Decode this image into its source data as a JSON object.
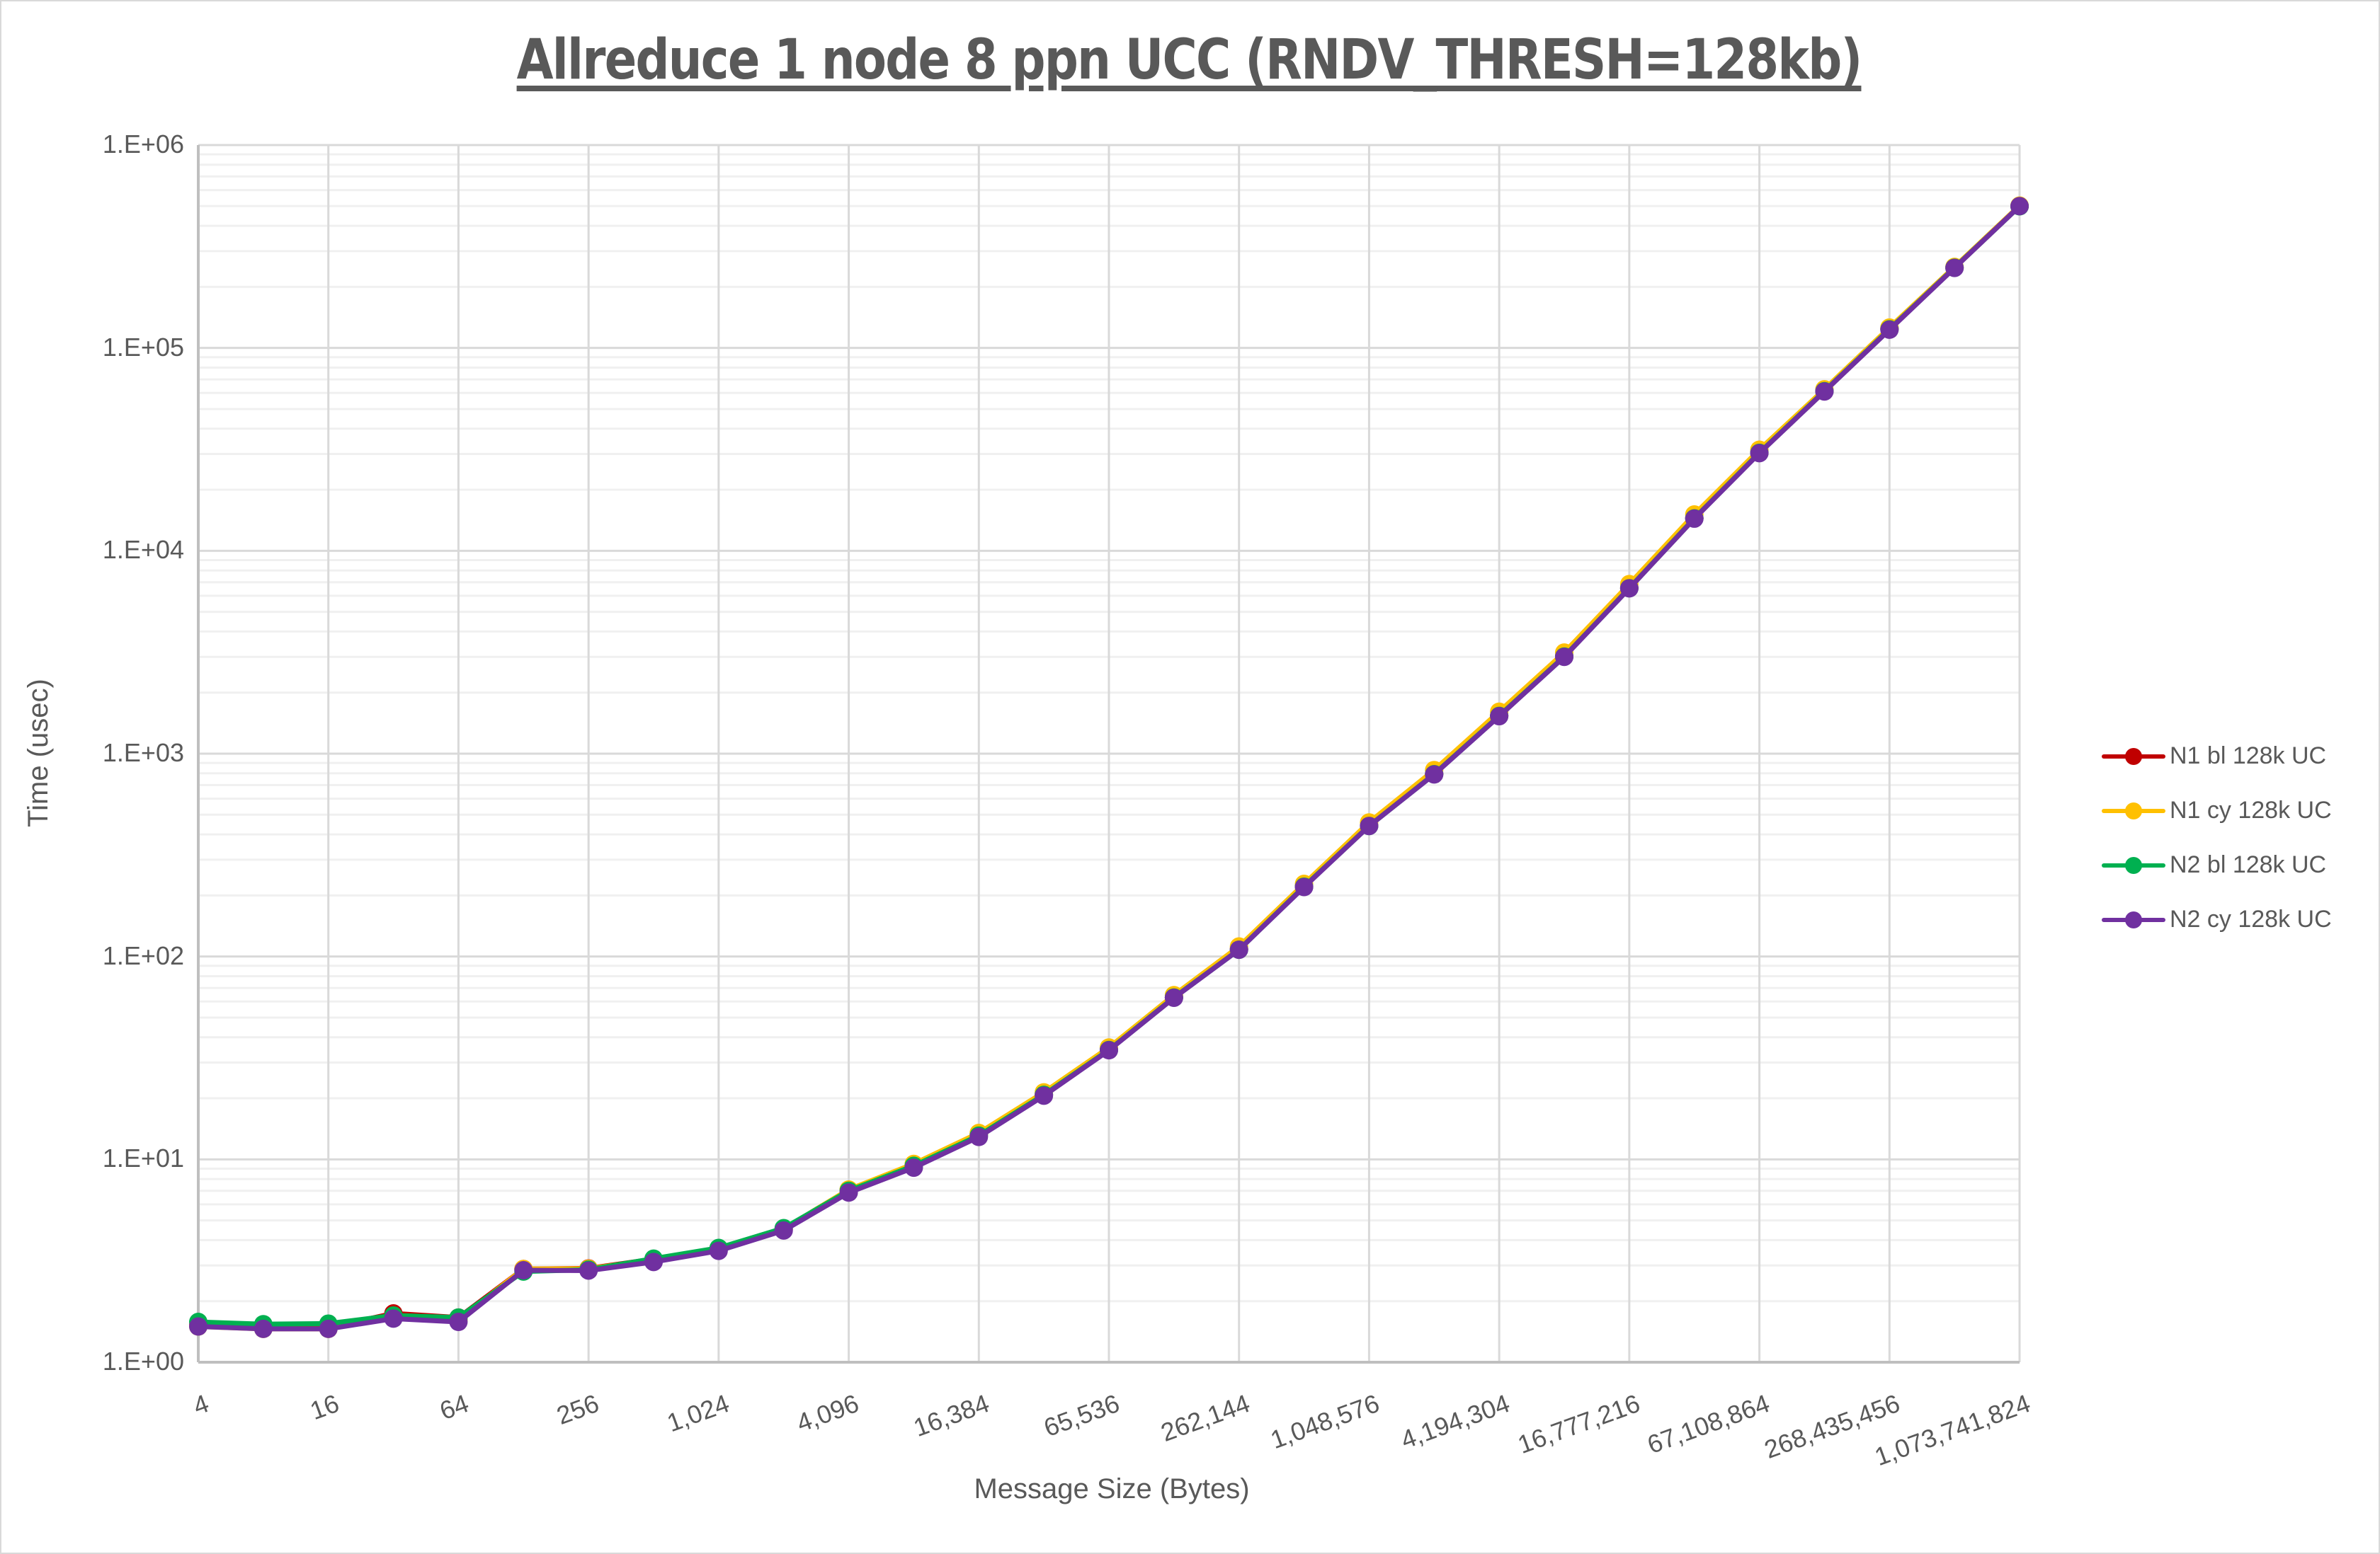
{
  "chart_data": {
    "type": "line",
    "title": "Allreduce 1 node 8 ppn UCC (RNDV_THRESH=128kb)",
    "xlabel": "Message Size (Bytes)",
    "ylabel": "Time (usec)",
    "yscale": "log",
    "ylim": [
      1,
      1000000
    ],
    "grid": true,
    "legend_position": "right",
    "y_ticks": [
      "1.E+00",
      "1.E+01",
      "1.E+02",
      "1.E+03",
      "1.E+04",
      "1.E+05",
      "1.E+06"
    ],
    "x_tick_labels": [
      "4",
      "16",
      "64",
      "256",
      "1,024",
      "4,096",
      "16,384",
      "65,536",
      "262,144",
      "1,048,576",
      "4,194,304",
      "16,777,216",
      "67,108,864",
      "268,435,456",
      "1,073,741,824"
    ],
    "x": [
      4,
      8,
      16,
      32,
      64,
      128,
      256,
      512,
      1024,
      2048,
      4096,
      8192,
      16384,
      32768,
      65536,
      131072,
      262144,
      524288,
      1048576,
      2097152,
      4194304,
      8388608,
      16777216,
      33554432,
      67108864,
      134217728,
      268435456,
      536870912,
      1073741824
    ],
    "series": [
      {
        "name": "N1 bl 128k UC",
        "color": "#c00000",
        "values": [
          1.52,
          1.48,
          1.48,
          1.74,
          1.66,
          2.88,
          2.9,
          3.22,
          3.64,
          4.52,
          7.05,
          9.4,
          13.3,
          20.9,
          34.9,
          63.0,
          109,
          222,
          442,
          795,
          1540,
          3020,
          6560,
          14500,
          30500,
          61500,
          124000,
          249000,
          500000
        ]
      },
      {
        "name": "N1 cy 128k UC",
        "color": "#ffc000",
        "values": [
          1.5,
          1.46,
          1.46,
          1.68,
          1.62,
          2.88,
          2.89,
          3.2,
          3.62,
          4.54,
          7.1,
          9.5,
          13.5,
          21.4,
          35.6,
          64.5,
          112,
          228,
          458,
          830,
          1610,
          3150,
          6850,
          15100,
          31500,
          62500,
          126000,
          251000,
          503000
        ]
      },
      {
        "name": "N2 bl 128k UC",
        "color": "#00b050",
        "values": [
          1.58,
          1.54,
          1.55,
          1.7,
          1.66,
          2.8,
          2.86,
          3.24,
          3.66,
          4.58,
          7.0,
          9.3,
          13.1,
          20.8,
          34.6,
          62.8,
          108,
          221,
          440,
          792,
          1535,
          3010,
          6540,
          14450,
          30400,
          61200,
          123500,
          248500,
          499000
        ]
      },
      {
        "name": "N2 cy 128k UC",
        "color": "#7030a0",
        "values": [
          1.5,
          1.46,
          1.46,
          1.64,
          1.58,
          2.84,
          2.83,
          3.12,
          3.54,
          4.46,
          6.86,
          9.1,
          12.9,
          20.6,
          34.5,
          62.6,
          108,
          220,
          440,
          790,
          1530,
          3000,
          6530,
          14400,
          30300,
          61000,
          123000,
          248000,
          500000
        ]
      }
    ]
  },
  "legend": {
    "items": [
      {
        "label": "N1 bl 128k UC",
        "color": "#c00000"
      },
      {
        "label": "N1 cy 128k UC",
        "color": "#ffc000"
      },
      {
        "label": "N2 bl 128k UC",
        "color": "#00b050"
      },
      {
        "label": "N2 cy 128k UC",
        "color": "#7030a0"
      }
    ]
  }
}
